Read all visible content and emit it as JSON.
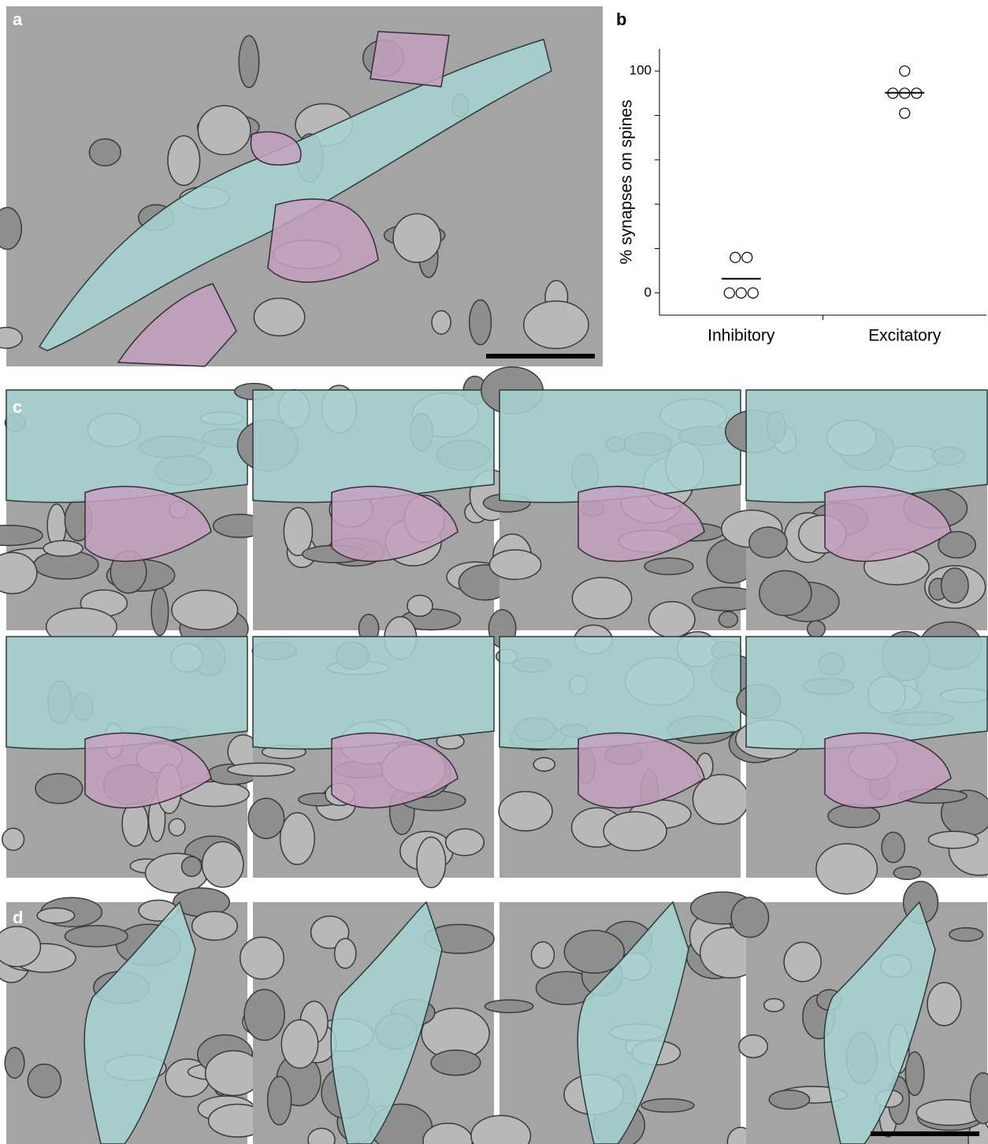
{
  "panels": {
    "a": "a",
    "b": "b",
    "c": "c",
    "d": "d"
  },
  "chart_data": {
    "type": "scatter",
    "ylabel": "% synapses on spines",
    "categories": [
      "Inhibitory",
      "Excitatory"
    ],
    "points": [
      [
        16,
        16,
        0,
        0,
        0
      ],
      [
        100,
        90,
        90,
        90,
        81
      ]
    ],
    "means": [
      6.4,
      90.2
    ],
    "marker_color": "#000000",
    "ylim": [
      -10,
      110
    ],
    "yticks": [
      0,
      100
    ],
    "minor_yticks": [
      20,
      40,
      60,
      80
    ]
  }
}
